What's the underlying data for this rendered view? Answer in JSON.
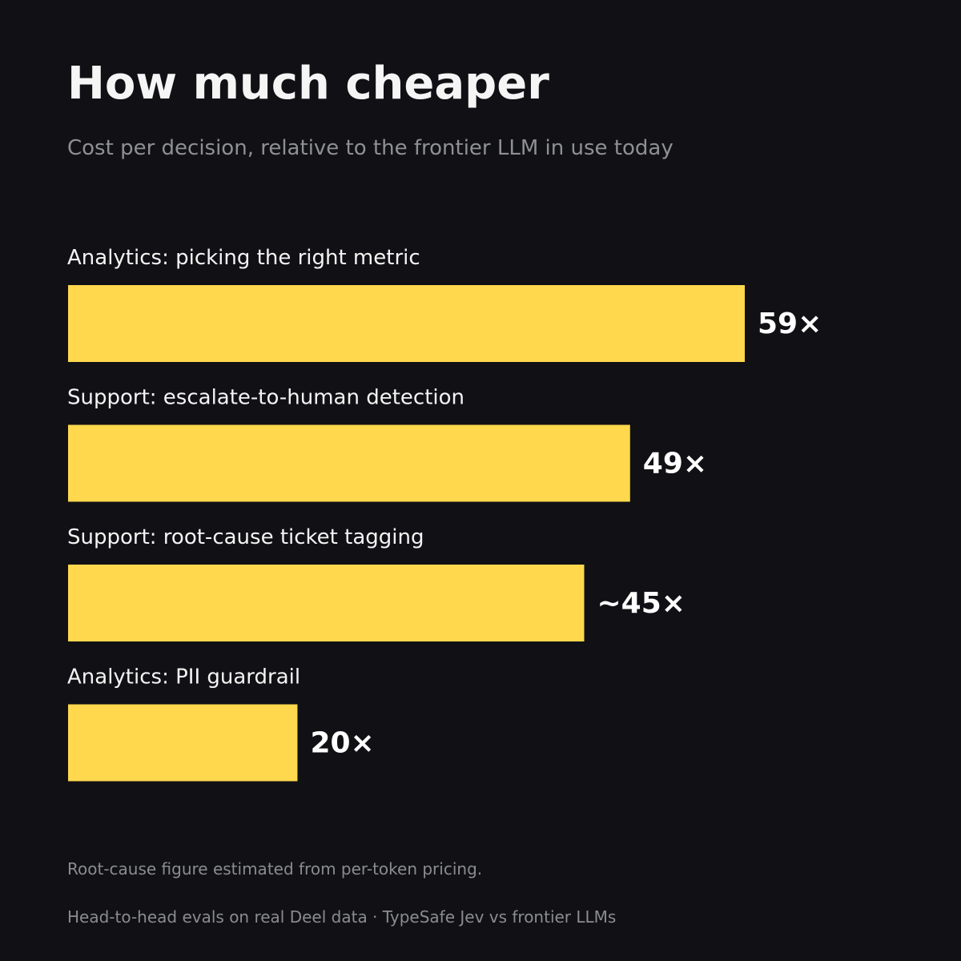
{
  "chart_data": {
    "type": "bar",
    "orientation": "horizontal",
    "title": "How much cheaper",
    "subtitle": "Cost per decision, relative to the frontier LLM in use today",
    "categories": [
      "Analytics: picking the right metric",
      "Support: escalate-to-human detection",
      "Support: root-cause ticket tagging",
      "Analytics: PII guardrail"
    ],
    "values": [
      59,
      49,
      45,
      20
    ],
    "value_labels": [
      "59×",
      "49×",
      "~45×",
      "20×"
    ],
    "xlim": [
      0,
      59
    ],
    "grid": false,
    "legend": "none",
    "bar_color": "#FFD84D",
    "background_color": "#111115",
    "label_color": "#F4F4F4",
    "muted_color": "#8E9096"
  },
  "footnote": "Root-cause figure estimated from per-token pricing.",
  "footer": "Head-to-head evals on real Deel data  ·  TypeSafe Jev vs frontier LLMs"
}
